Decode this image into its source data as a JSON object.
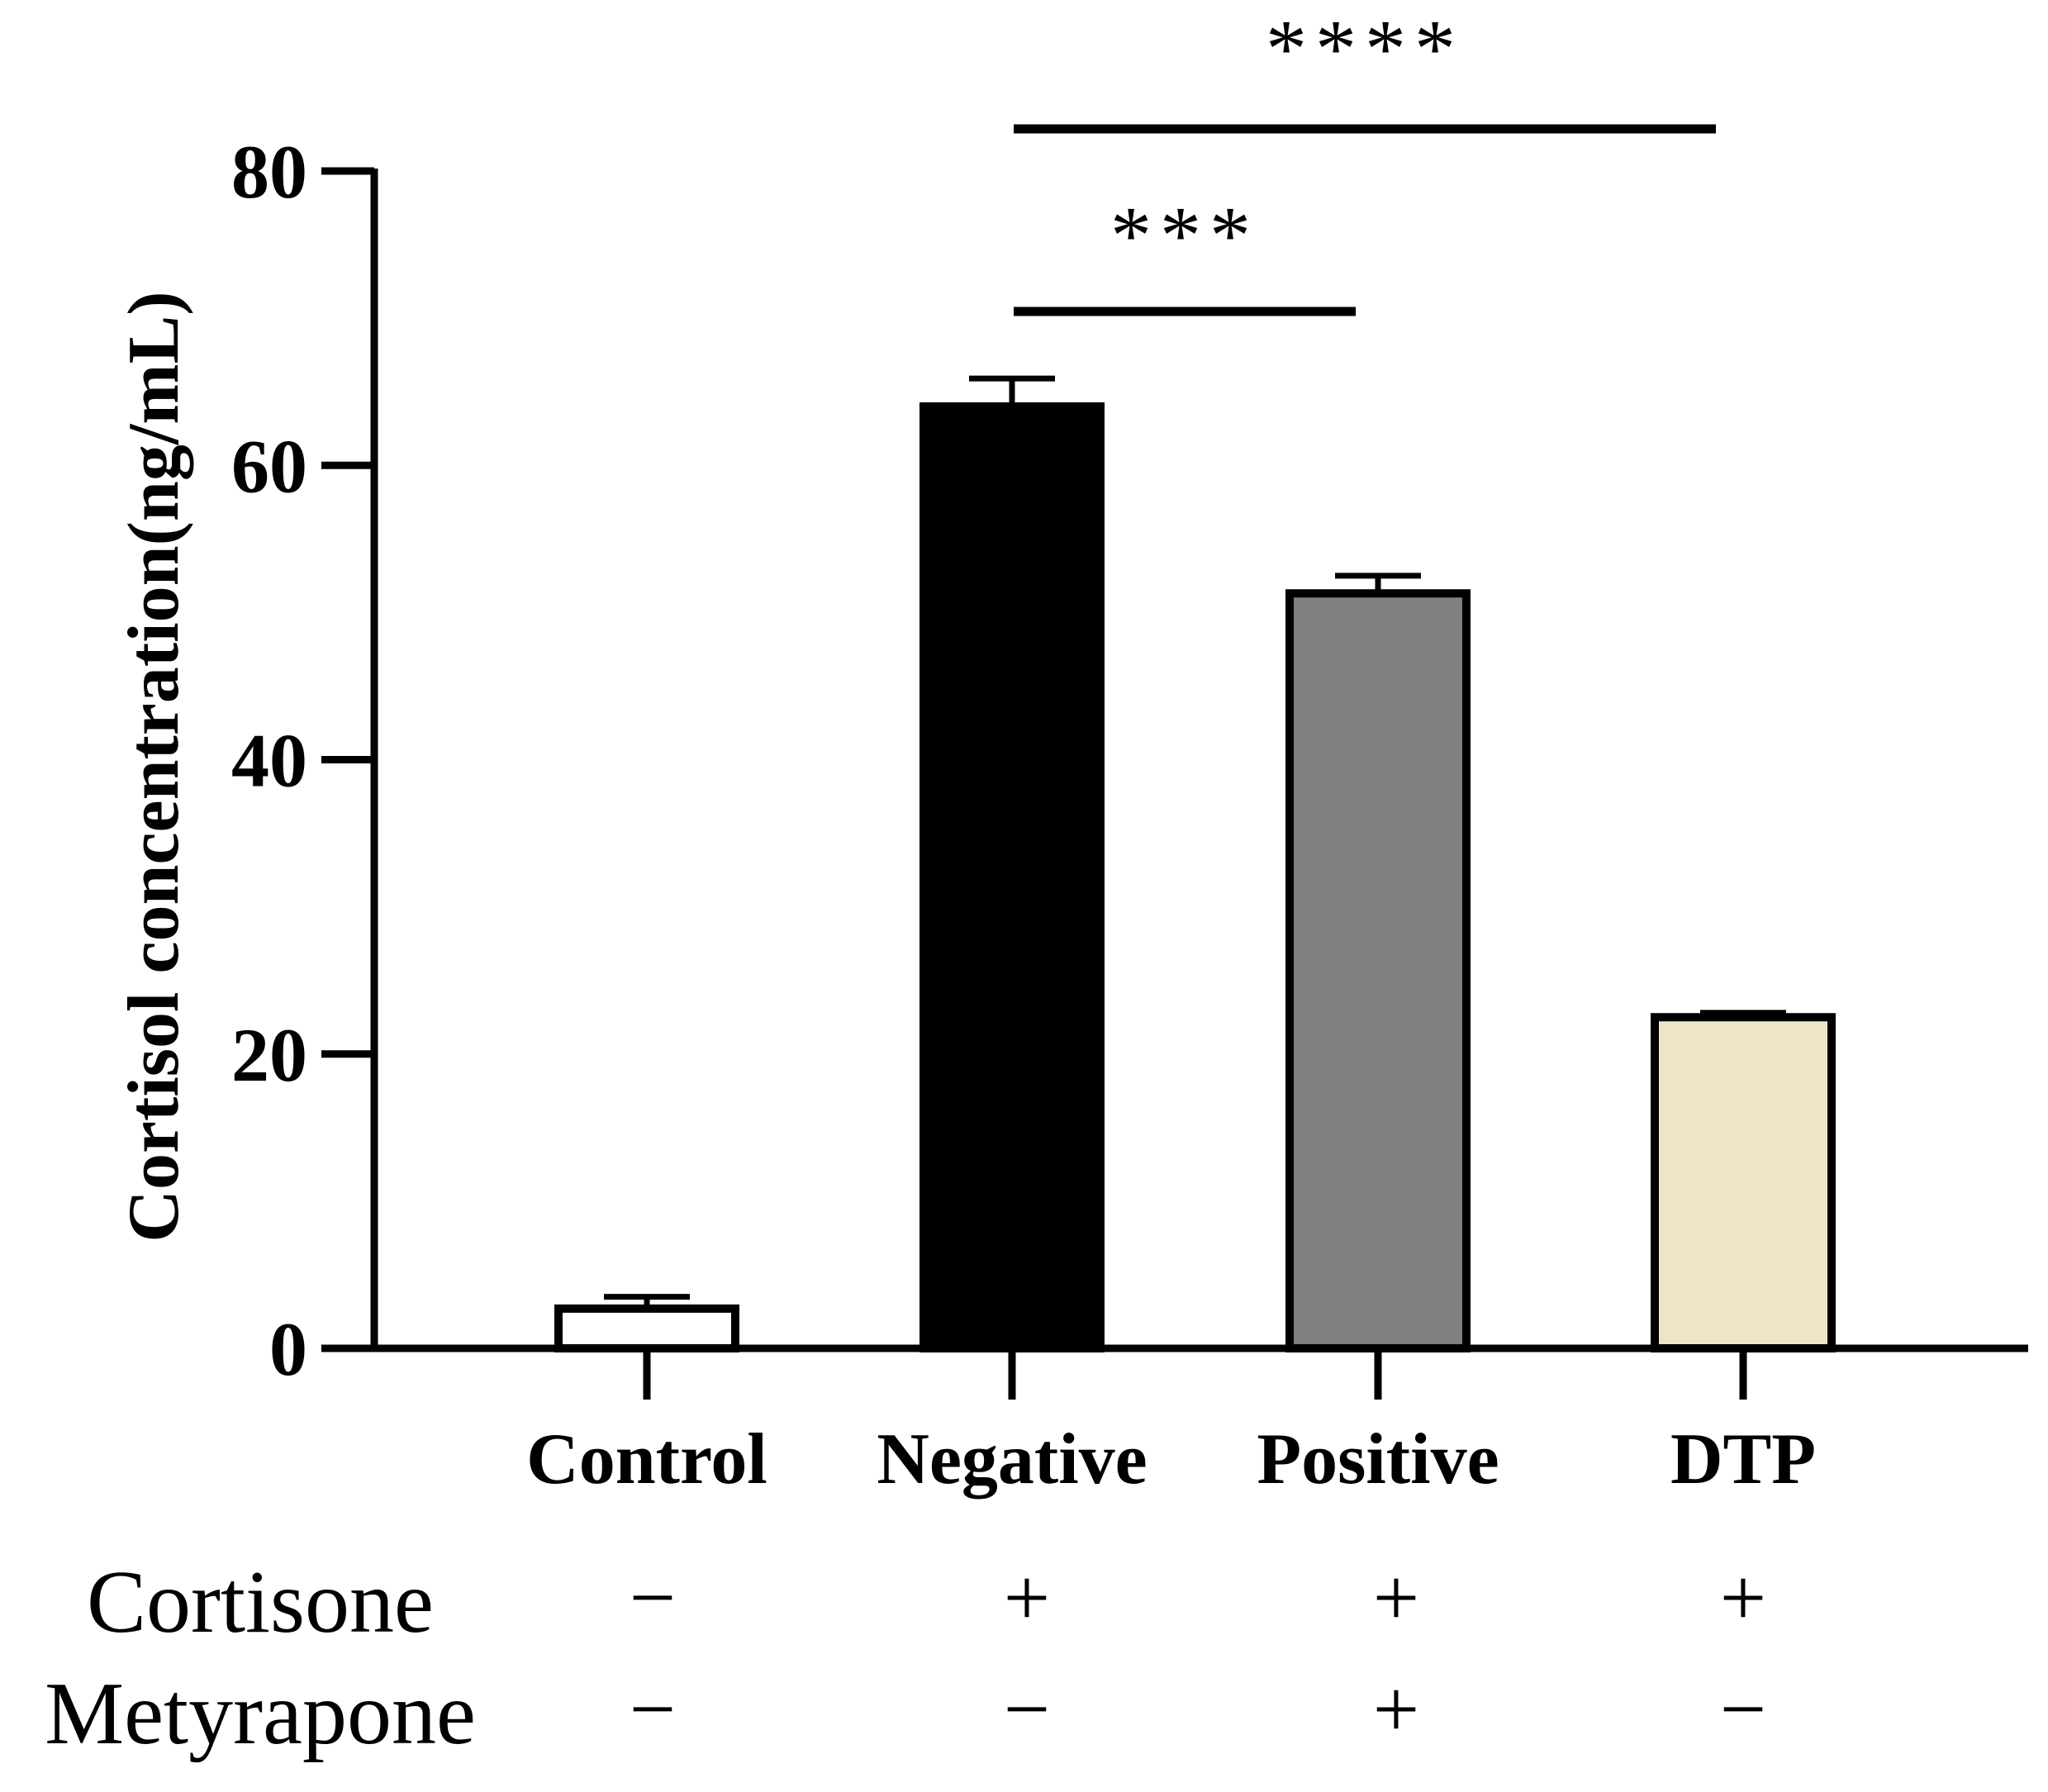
{
  "chart_data": {
    "type": "bar",
    "title": "",
    "xlabel": "",
    "ylabel": "Cortisol concentration(ng/mL)",
    "ylim": [
      0,
      80
    ],
    "yticks": [
      0,
      20,
      40,
      60,
      80
    ],
    "ytick_labels": [
      "0",
      "20",
      "40",
      "60",
      "80"
    ],
    "grid": false,
    "categories": [
      "Control",
      "Negative",
      "Positive",
      "DTP"
    ],
    "values": [
      2.7,
      64.0,
      51.3,
      22.5
    ],
    "error_upper": [
      3.5,
      65.9,
      52.5,
      22.8
    ],
    "bar_colors": [
      "#ffffff",
      "#000000",
      "#808080",
      "#ede5c8"
    ],
    "significance": [
      {
        "from": "Negative",
        "to": "Positive",
        "label": "***",
        "y_value": 70.5
      },
      {
        "from": "Negative",
        "to": "DTP",
        "label": "****",
        "y_value": 83
      }
    ],
    "treatment_rows": [
      {
        "label": "Cortisone",
        "signs": [
          "−",
          "+",
          "+",
          "+"
        ]
      },
      {
        "label": "Metyrapone",
        "signs": [
          "−",
          "−",
          "+",
          "−"
        ]
      }
    ]
  }
}
